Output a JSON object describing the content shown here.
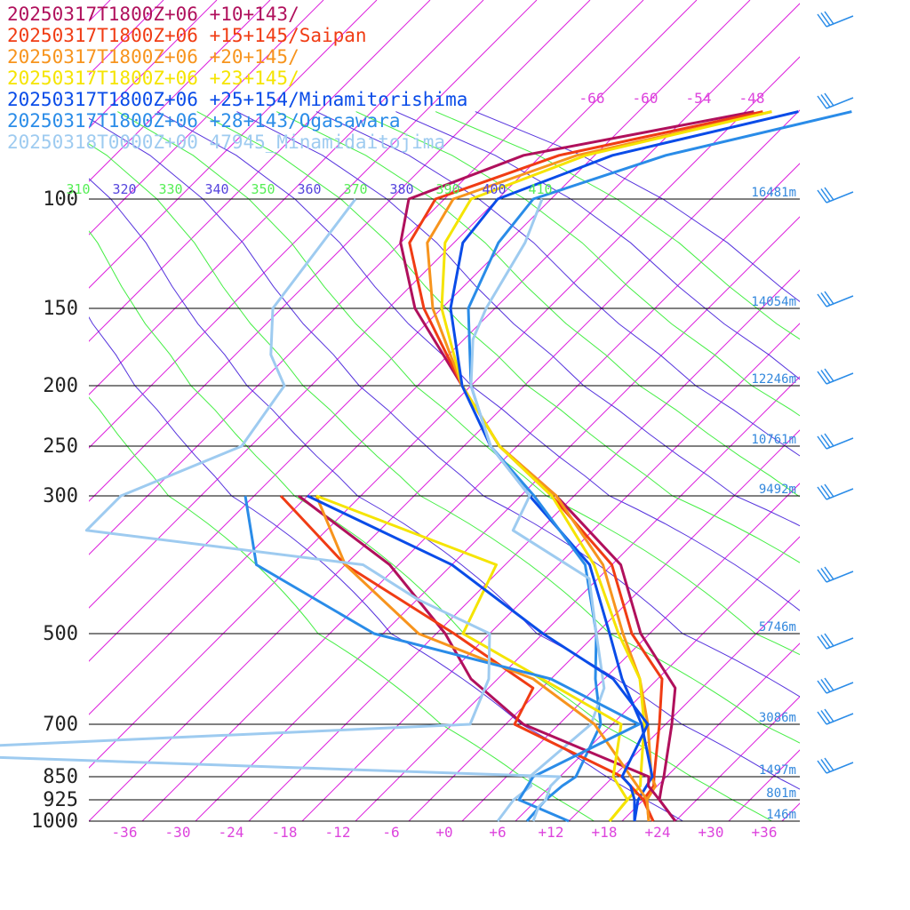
{
  "chart_data": {
    "type": "line",
    "legend": [
      {
        "label": "20250317T1800Z+06 +10+143/",
        "color": "#b0105c"
      },
      {
        "label": "20250317T1800Z+06 +15+145/Saipan",
        "color": "#f03c14"
      },
      {
        "label": "20250317T1800Z+06 +20+145/",
        "color": "#f7941d"
      },
      {
        "label": "20250317T1800Z+06 +23+145/",
        "color": "#f5e400"
      },
      {
        "label": "20250317T1800Z+06 +25+154/Minamitorishima",
        "color": "#0a4ce8"
      },
      {
        "label": "20250317T1800Z+06 +28+143/Ogasawara",
        "color": "#2a8ce8"
      },
      {
        "label": "20250318T0000Z+00 47945_Minamidaitojima",
        "color": "#9ecbf0"
      }
    ],
    "pressure_levels": [
      {
        "p": 100,
        "label": "100",
        "height": "16481m"
      },
      {
        "p": 150,
        "label": "150",
        "height": "14054m"
      },
      {
        "p": 200,
        "label": "200",
        "height": "12246m"
      },
      {
        "p": 250,
        "label": "250",
        "height": "10761m"
      },
      {
        "p": 300,
        "label": "300",
        "height": "9492m"
      },
      {
        "p": 500,
        "label": "500",
        "height": "5746m"
      },
      {
        "p": 700,
        "label": "700",
        "height": "3086m"
      },
      {
        "p": 850,
        "label": "850",
        "height": "1497m"
      },
      {
        "p": 925,
        "label": "925",
        "height": "801m"
      },
      {
        "p": 1000,
        "label": "1000",
        "height": "146m"
      }
    ],
    "x_ticks": [
      "-36",
      "-30",
      "-24",
      "-18",
      "-12",
      "-6",
      "+0",
      "+6",
      "+12",
      "+18",
      "+24",
      "+30",
      "+36"
    ],
    "x_tick_values": [
      -36,
      -30,
      -24,
      -18,
      -12,
      -6,
      0,
      6,
      12,
      18,
      24,
      30,
      36
    ],
    "isotherm_labels": [
      "-66",
      "-60",
      "-54",
      "-48"
    ],
    "theta_labels": [
      {
        "label": "310",
        "color": "#55ee55"
      },
      {
        "label": "320",
        "color": "#5544dd"
      },
      {
        "label": "330",
        "color": "#55ee55"
      },
      {
        "label": "340",
        "color": "#5544dd"
      },
      {
        "label": "350",
        "color": "#55ee55"
      },
      {
        "label": "360",
        "color": "#5544dd"
      },
      {
        "label": "370",
        "color": "#55ee55"
      },
      {
        "label": "380",
        "color": "#5544dd"
      },
      {
        "label": "390",
        "color": "#55ee55"
      },
      {
        "label": "400",
        "color": "#5544dd"
      },
      {
        "label": "410",
        "color": "#55ee55"
      }
    ],
    "colors": {
      "isotherm": "#dd22dd",
      "tick_text": "#dd44dd",
      "isobar": "#000000",
      "height_text": "#3388dd",
      "adiabat_a": "#5533dd",
      "adiabat_b": "#44ee44",
      "wind": "#2a8ce8"
    },
    "profiles_px": "Profiles are drawn as skew-T traces; see chart_data.series",
    "series": [
      {
        "name": "20250317T1800Z+06 +10+143/",
        "color": "#b0105c",
        "type": "temp",
        "points": [
          [
            1000,
            26.2
          ],
          [
            925,
            21.6
          ],
          [
            850,
            19.9
          ],
          [
            700,
            14.6
          ],
          [
            600,
            5.0
          ],
          [
            500,
            -8.8
          ],
          [
            400,
            -18
          ],
          [
            300,
            -31
          ],
          [
            200,
            -54
          ],
          [
            150,
            -66
          ],
          [
            120,
            -73
          ],
          [
            100,
            -73
          ]
        ]
      }
    ]
  }
}
